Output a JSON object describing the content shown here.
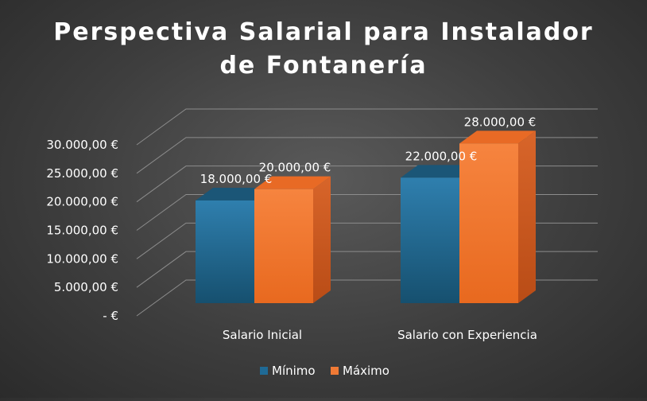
{
  "chart_data": {
    "type": "bar",
    "title_line1": "Perspectiva Salarial para Instalador",
    "title_line2": "de Fontanería",
    "categories": [
      "Salario Inicial",
      "Salario con Experiencia"
    ],
    "series": [
      {
        "name": "Mínimo",
        "values": [
          18000,
          22000
        ],
        "labels": [
          "18.000,00 €",
          "22.000,00 €"
        ]
      },
      {
        "name": "Máximo",
        "values": [
          20000,
          28000
        ],
        "labels": [
          "20.000,00 €",
          "28.000,00 €"
        ]
      }
    ],
    "ylim": [
      0,
      30000
    ],
    "y_ticks": [
      0,
      5000,
      10000,
      15000,
      20000,
      25000,
      30000
    ],
    "y_tick_labels": [
      "-  €",
      "5.000,00 €",
      "10.000,00 €",
      "15.000,00 €",
      "20.000,00 €",
      "25.000,00 €",
      "30.000,00 €"
    ],
    "legend_position": "bottom",
    "grid": true,
    "colors": {
      "minimo_front": "#1f5f86",
      "minimo_top": "#1a5276",
      "maximo_front": "#f07a35",
      "maximo_side": "#c9561a",
      "maximo_top": "#e86a25",
      "text": "#ffffff",
      "gridline": "#8a8a8a"
    }
  }
}
